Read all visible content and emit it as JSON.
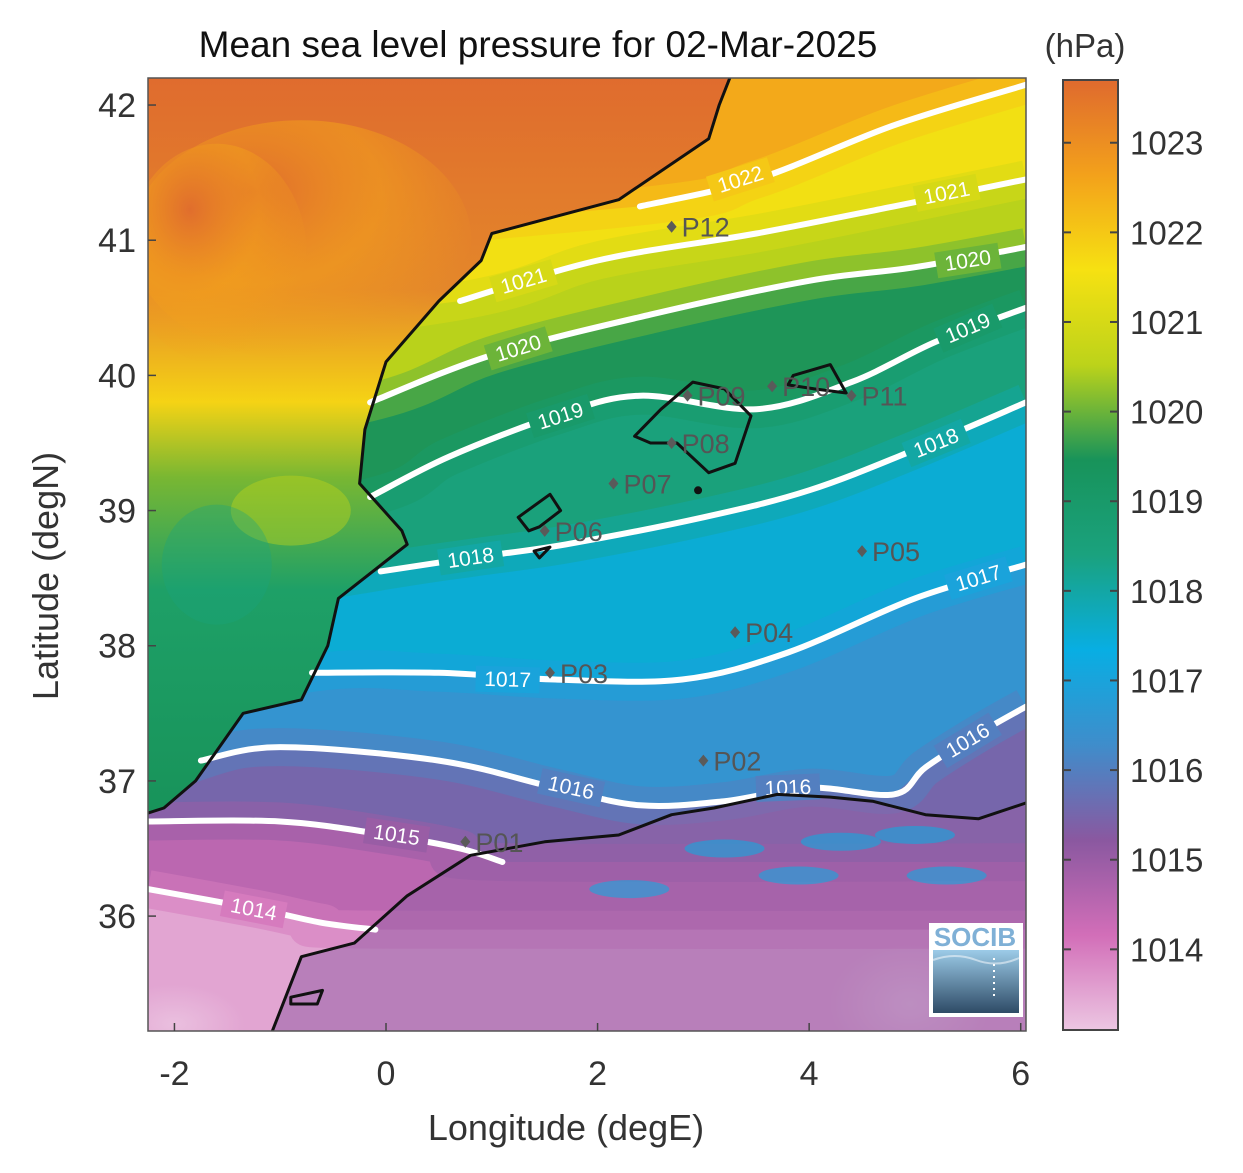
{
  "title": "Mean sea level pressure for 02-Mar-2025",
  "colorbar": {
    "unit": "(hPa)",
    "ticks": [
      {
        "label": "1023",
        "value": 1023
      },
      {
        "label": "1022",
        "value": 1022
      },
      {
        "label": "1021",
        "value": 1021
      },
      {
        "label": "1020",
        "value": 1020
      },
      {
        "label": "1019",
        "value": 1019
      },
      {
        "label": "1018",
        "value": 1018
      },
      {
        "label": "1017",
        "value": 1017
      },
      {
        "label": "1016",
        "value": 1016
      },
      {
        "label": "1015",
        "value": 1015
      },
      {
        "label": "1014",
        "value": 1014
      }
    ],
    "range": [
      1013.1,
      1023.7
    ],
    "colors": [
      "#ecc6e2",
      "#d26eb8",
      "#8a58a0",
      "#3f8dcb",
      "#08aee3",
      "#1aa27e",
      "#18935a",
      "#bcd31a",
      "#f6e112",
      "#f3a11b",
      "#df6a2e"
    ]
  },
  "axes": {
    "xlabel": "Longitude (degE)",
    "ylabel": "Latitude (degN)",
    "xlim": [
      -2.25,
      6.05
    ],
    "ylim": [
      35.15,
      42.2
    ],
    "xticks": [
      {
        "label": "-2",
        "value": -2
      },
      {
        "label": "0",
        "value": 0
      },
      {
        "label": "2",
        "value": 2
      },
      {
        "label": "4",
        "value": 4
      },
      {
        "label": "6",
        "value": 6
      }
    ],
    "yticks": [
      {
        "label": "36",
        "value": 36
      },
      {
        "label": "37",
        "value": 37
      },
      {
        "label": "38",
        "value": 38
      },
      {
        "label": "39",
        "value": 39
      },
      {
        "label": "40",
        "value": 40
      },
      {
        "label": "41",
        "value": 41
      },
      {
        "label": "42",
        "value": 42
      }
    ]
  },
  "contours": [
    {
      "level": 1022,
      "label": "1022",
      "points": [
        [
          2.4,
          41.25
        ],
        [
          3.5,
          41.45
        ],
        [
          4.8,
          41.85
        ],
        [
          6.05,
          42.15
        ]
      ]
    },
    {
      "level": 1021,
      "label": "1021",
      "points": [
        [
          0.7,
          40.55
        ],
        [
          2.0,
          40.85
        ],
        [
          3.5,
          41.05
        ],
        [
          4.8,
          41.25
        ],
        [
          6.05,
          41.45
        ]
      ]
    },
    {
      "level": 1020,
      "label": "1020",
      "points": [
        [
          -0.15,
          39.8
        ],
        [
          1.0,
          40.15
        ],
        [
          2.5,
          40.45
        ],
        [
          4.0,
          40.7
        ],
        [
          5.0,
          40.8
        ],
        [
          6.05,
          40.95
        ]
      ]
    },
    {
      "level": 1019,
      "label": "1019",
      "points": [
        [
          -0.15,
          39.1
        ],
        [
          0.6,
          39.4
        ],
        [
          1.6,
          39.7
        ],
        [
          2.4,
          39.85
        ],
        [
          3.5,
          39.75
        ],
        [
          4.4,
          39.95
        ],
        [
          5.2,
          40.25
        ],
        [
          6.05,
          40.5
        ]
      ]
    },
    {
      "level": 1018,
      "label": "1018",
      "points": [
        [
          -0.05,
          38.55
        ],
        [
          0.8,
          38.65
        ],
        [
          1.7,
          38.75
        ],
        [
          3.0,
          38.95
        ],
        [
          4.0,
          39.15
        ],
        [
          5.0,
          39.45
        ],
        [
          6.05,
          39.8
        ]
      ]
    },
    {
      "level": 1017,
      "label": "1017",
      "points": [
        [
          -0.7,
          37.8
        ],
        [
          0.5,
          37.8
        ],
        [
          1.6,
          37.75
        ],
        [
          2.8,
          37.75
        ],
        [
          3.8,
          37.95
        ],
        [
          5.0,
          38.35
        ],
        [
          6.05,
          38.6
        ]
      ]
    },
    {
      "level": 1016,
      "label": "1016",
      "points": [
        [
          -1.75,
          37.15
        ],
        [
          -1.0,
          37.25
        ],
        [
          0.5,
          37.15
        ],
        [
          1.6,
          36.95
        ],
        [
          2.4,
          36.82
        ],
        [
          3.2,
          36.85
        ],
        [
          4.0,
          36.95
        ],
        [
          4.8,
          36.9
        ],
        [
          5.1,
          37.1
        ],
        [
          5.6,
          37.35
        ],
        [
          6.05,
          37.55
        ]
      ]
    },
    {
      "level": 1015,
      "label": "1015",
      "points": [
        [
          -2.25,
          36.7
        ],
        [
          -1.0,
          36.7
        ],
        [
          0.0,
          36.6
        ],
        [
          0.7,
          36.5
        ],
        [
          1.1,
          36.4
        ]
      ]
    },
    {
      "level": 1014,
      "label": "1014",
      "points": [
        [
          -2.25,
          36.2
        ],
        [
          -1.2,
          36.05
        ],
        [
          -0.6,
          35.95
        ],
        [
          -0.1,
          35.9
        ]
      ]
    }
  ],
  "stations": [
    {
      "id": "P01",
      "label": "P01",
      "lon": 0.75,
      "lat": 36.55
    },
    {
      "id": "P02",
      "label": "P02",
      "lon": 3.0,
      "lat": 37.15
    },
    {
      "id": "P03",
      "label": "P03",
      "lon": 1.55,
      "lat": 37.8
    },
    {
      "id": "P04",
      "label": "P04",
      "lon": 3.3,
      "lat": 38.1
    },
    {
      "id": "P05",
      "label": "P05",
      "lon": 4.5,
      "lat": 38.7
    },
    {
      "id": "P06",
      "label": "P06",
      "lon": 1.5,
      "lat": 38.85
    },
    {
      "id": "P07",
      "label": "P07",
      "lon": 2.15,
      "lat": 39.2
    },
    {
      "id": "P08",
      "label": "P08",
      "lon": 2.7,
      "lat": 39.5
    },
    {
      "id": "P09",
      "label": "P09",
      "lon": 2.85,
      "lat": 39.85
    },
    {
      "id": "P10",
      "label": "P10",
      "lon": 3.65,
      "lat": 39.92
    },
    {
      "id": "P11",
      "label": "P11",
      "lon": 4.4,
      "lat": 39.85
    },
    {
      "id": "P12",
      "label": "P12",
      "lon": 2.7,
      "lat": 41.1
    }
  ],
  "logo": {
    "text": "SOCIB"
  }
}
